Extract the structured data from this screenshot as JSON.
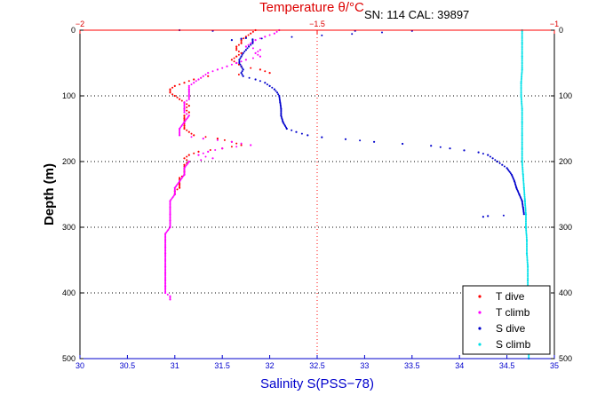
{
  "chart_data": {
    "type": "scatter",
    "top_axis_label": "Temperature θ/°C",
    "serial_text": "SN: 114  CAL: 39897",
    "xlabel": "Salinity S(PSS−78)",
    "ylabel": "Depth (m)",
    "salinity_range": [
      30,
      35
    ],
    "temperature_range": [
      -2,
      -1
    ],
    "depth_range": [
      0,
      500
    ],
    "salinity_ticks": [
      "30",
      "30.5",
      "31",
      "31.5",
      "32",
      "32.5",
      "33",
      "33.5",
      "34",
      "34.5",
      "35"
    ],
    "temperature_ticks": [
      "-2",
      "-1.5",
      "-1"
    ],
    "depth_ticks": [
      "0",
      "100",
      "200",
      "300",
      "400",
      "500"
    ],
    "grid": "dotted at depths 100, 200, 300, 400 and at salinity 32.5",
    "legend_position": "bottom-right",
    "series": [
      {
        "name": "T dive",
        "axis": "temperature",
        "color": "#ff0000",
        "points": [
          [
            -1.63,
            0
          ],
          [
            -1.64,
            5
          ],
          [
            -1.65,
            10
          ],
          [
            -1.66,
            15
          ],
          [
            -1.66,
            20
          ],
          [
            -1.67,
            25
          ],
          [
            -1.67,
            30
          ],
          [
            -1.66,
            35
          ],
          [
            -1.67,
            40
          ],
          [
            -1.68,
            45
          ],
          [
            -1.67,
            50
          ],
          [
            -1.66,
            55
          ],
          [
            -1.62,
            60
          ],
          [
            -1.6,
            65
          ],
          [
            -1.73,
            70
          ],
          [
            -1.76,
            75
          ],
          [
            -1.78,
            80
          ],
          [
            -1.8,
            85
          ],
          [
            -1.81,
            90
          ],
          [
            -1.81,
            95
          ],
          [
            -1.8,
            100
          ],
          [
            -1.79,
            105
          ],
          [
            -1.78,
            110
          ],
          [
            -1.77,
            115
          ],
          [
            -1.78,
            120
          ],
          [
            -1.77,
            125
          ],
          [
            -1.78,
            130
          ],
          [
            -1.78,
            135
          ],
          [
            -1.78,
            140
          ],
          [
            -1.78,
            145
          ],
          [
            -1.78,
            150
          ],
          [
            -1.77,
            155
          ],
          [
            -1.76,
            160
          ],
          [
            -1.71,
            165
          ],
          [
            -1.68,
            170
          ],
          [
            -1.66,
            175
          ],
          [
            -1.7,
            180
          ],
          [
            -1.75,
            185
          ],
          [
            -1.77,
            190
          ],
          [
            -1.78,
            195
          ],
          [
            -1.77,
            200
          ],
          [
            -1.78,
            205
          ],
          [
            -1.78,
            210
          ],
          [
            -1.78,
            215
          ],
          [
            -1.78,
            220
          ],
          [
            -1.79,
            225
          ],
          [
            -1.79,
            230
          ],
          [
            -1.79,
            235
          ],
          [
            -1.79,
            240
          ],
          [
            -1.8,
            245
          ],
          [
            -1.8,
            250
          ]
        ]
      },
      {
        "name": "T climb",
        "axis": "temperature",
        "color": "#ff00ff",
        "points": [
          [
            -1.58,
            0
          ],
          [
            -1.59,
            5
          ],
          [
            -1.61,
            10
          ],
          [
            -1.63,
            15
          ],
          [
            -1.64,
            20
          ],
          [
            -1.65,
            25
          ],
          [
            -1.62,
            30
          ],
          [
            -1.63,
            35
          ],
          [
            -1.62,
            40
          ],
          [
            -1.65,
            45
          ],
          [
            -1.67,
            50
          ],
          [
            -1.69,
            55
          ],
          [
            -1.71,
            60
          ],
          [
            -1.73,
            65
          ],
          [
            -1.74,
            70
          ],
          [
            -1.75,
            75
          ],
          [
            -1.76,
            80
          ],
          [
            -1.77,
            85
          ],
          [
            -1.77,
            90
          ],
          [
            -1.77,
            100
          ],
          [
            -1.77,
            105
          ],
          [
            -1.78,
            110
          ],
          [
            -1.78,
            120
          ],
          [
            -1.78,
            125
          ],
          [
            -1.77,
            130
          ],
          [
            -1.78,
            140
          ],
          [
            -1.79,
            150
          ],
          [
            -1.79,
            160
          ],
          [
            -1.74,
            165
          ],
          [
            -1.68,
            170
          ],
          [
            -1.64,
            175
          ],
          [
            -1.7,
            180
          ],
          [
            -1.73,
            185
          ],
          [
            -1.75,
            190
          ],
          [
            -1.72,
            195
          ],
          [
            -1.77,
            200
          ],
          [
            -1.78,
            210
          ],
          [
            -1.78,
            220
          ],
          [
            -1.79,
            230
          ],
          [
            -1.8,
            240
          ],
          [
            -1.8,
            250
          ],
          [
            -1.81,
            260
          ],
          [
            -1.81,
            270
          ],
          [
            -1.81,
            280
          ],
          [
            -1.81,
            290
          ],
          [
            -1.81,
            300
          ],
          [
            -1.82,
            310
          ],
          [
            -1.82,
            320
          ],
          [
            -1.82,
            330
          ],
          [
            -1.82,
            340
          ],
          [
            -1.82,
            350
          ],
          [
            -1.82,
            360
          ],
          [
            -1.82,
            370
          ],
          [
            -1.82,
            380
          ],
          [
            -1.82,
            390
          ],
          [
            -1.82,
            400
          ],
          [
            -1.81,
            405
          ],
          [
            -1.81,
            410
          ]
        ]
      },
      {
        "name": "S dive",
        "axis": "salinity",
        "color": "#0000cc",
        "points": [
          [
            31.05,
            0
          ],
          [
            31.4,
            1
          ],
          [
            32.9,
            1
          ],
          [
            33.5,
            1
          ],
          [
            31.6,
            15
          ],
          [
            31.7,
            13
          ],
          [
            31.75,
            12
          ],
          [
            31.82,
            14
          ],
          [
            31.82,
            20
          ],
          [
            31.78,
            25
          ],
          [
            31.75,
            30
          ],
          [
            31.72,
            35
          ],
          [
            31.7,
            40
          ],
          [
            31.68,
            45
          ],
          [
            31.68,
            50
          ],
          [
            31.7,
            55
          ],
          [
            31.72,
            60
          ],
          [
            31.7,
            65
          ],
          [
            31.72,
            70
          ],
          [
            31.85,
            75
          ],
          [
            31.95,
            80
          ],
          [
            32.0,
            85
          ],
          [
            32.05,
            90
          ],
          [
            32.08,
            95
          ],
          [
            32.1,
            100
          ],
          [
            32.11,
            110
          ],
          [
            32.12,
            120
          ],
          [
            32.12,
            130
          ],
          [
            32.14,
            140
          ],
          [
            32.18,
            150
          ],
          [
            32.28,
            155
          ],
          [
            32.4,
            160
          ],
          [
            32.55,
            163
          ],
          [
            32.8,
            166
          ],
          [
            33.1,
            170
          ],
          [
            33.4,
            173
          ],
          [
            33.7,
            176
          ],
          [
            33.9,
            180
          ],
          [
            34.05,
            183
          ],
          [
            34.2,
            186
          ],
          [
            34.3,
            190
          ],
          [
            34.35,
            195
          ],
          [
            34.4,
            200
          ],
          [
            34.45,
            205
          ],
          [
            34.5,
            210
          ],
          [
            34.55,
            220
          ],
          [
            34.58,
            230
          ],
          [
            34.6,
            240
          ],
          [
            34.63,
            250
          ],
          [
            34.66,
            260
          ],
          [
            34.67,
            270
          ],
          [
            34.68,
            280
          ],
          [
            34.25,
            284
          ],
          [
            34.3,
            283
          ]
        ]
      },
      {
        "name": "S climb",
        "axis": "salinity",
        "color": "#00e0e8",
        "points": [
          [
            34.66,
            0
          ],
          [
            34.66,
            20
          ],
          [
            34.66,
            40
          ],
          [
            34.66,
            60
          ],
          [
            34.65,
            80
          ],
          [
            34.65,
            100
          ],
          [
            34.66,
            120
          ],
          [
            34.66,
            140
          ],
          [
            34.66,
            160
          ],
          [
            34.66,
            180
          ],
          [
            34.66,
            200
          ],
          [
            34.67,
            220
          ],
          [
            34.68,
            240
          ],
          [
            34.69,
            260
          ],
          [
            34.7,
            280
          ],
          [
            34.7,
            300
          ],
          [
            34.71,
            320
          ],
          [
            34.71,
            340
          ],
          [
            34.72,
            360
          ],
          [
            34.72,
            380
          ],
          [
            34.72,
            400
          ],
          [
            34.73,
            420
          ],
          [
            34.73,
            440
          ],
          [
            34.73,
            460
          ],
          [
            34.73,
            480
          ],
          [
            34.73,
            500
          ]
        ]
      }
    ]
  }
}
